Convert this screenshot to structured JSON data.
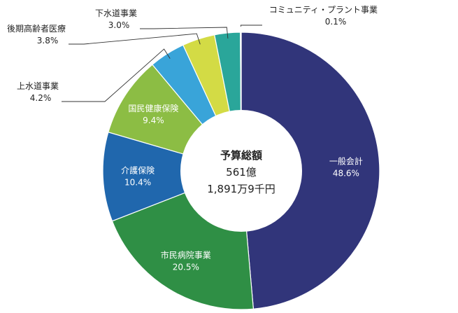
{
  "chart_data": {
    "type": "pie",
    "variant": "donut",
    "center": {
      "line1": "予算総額",
      "line2": "561億",
      "line3": "1,891万9千円"
    },
    "slices": [
      {
        "label": "一般会計",
        "value": 48.6,
        "value_label": "48.6%",
        "color": "#31357a",
        "label_position": "inside"
      },
      {
        "label": "市民病院事業",
        "value": 20.5,
        "value_label": "20.5%",
        "color": "#2f8f45",
        "label_position": "inside"
      },
      {
        "label": "介護保険",
        "value": 10.4,
        "value_label": "10.4%",
        "color": "#2067ad",
        "label_position": "inside"
      },
      {
        "label": "国民健康保険",
        "value": 9.4,
        "value_label": "9.4%",
        "color": "#8cbd44",
        "label_position": "inside"
      },
      {
        "label": "上水道事業",
        "value": 4.2,
        "value_label": "4.2%",
        "color": "#39a4d9",
        "label_position": "outside"
      },
      {
        "label": "後期高齢者医療",
        "value": 3.8,
        "value_label": "3.8%",
        "color": "#d3db45",
        "label_position": "outside"
      },
      {
        "label": "下水道事業",
        "value": 3.0,
        "value_label": "3.0%",
        "color": "#2aa69a",
        "label_position": "outside"
      },
      {
        "label": "コミュニティ・プラント事業",
        "value": 0.1,
        "value_label": "0.1%",
        "color": "#1d7d50",
        "label_position": "outside"
      }
    ]
  }
}
